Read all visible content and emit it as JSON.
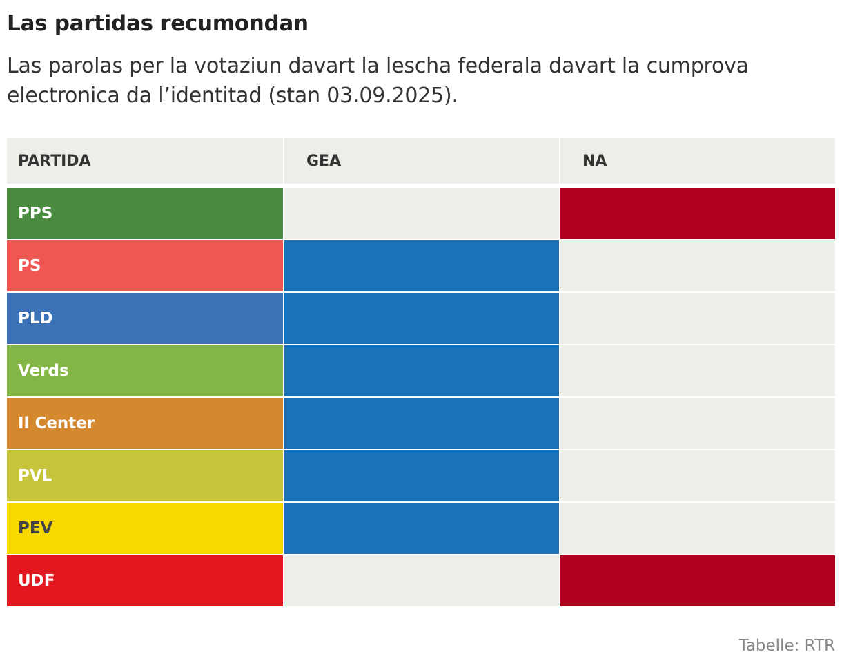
{
  "title": "Las partidas recumondan",
  "subtitle": "Las parolas per la votaziun davart la lescha federala davart la cumprova electronica da l’identitad (stan 03.09.2025).",
  "source": "Tabelle: RTR",
  "colors": {
    "gea": "#1b72b8",
    "na": "#b0001e",
    "empty": "#eeeee9",
    "header_bg": "#eeeee9"
  },
  "chart_data": {
    "type": "table",
    "title": "Las partidas recumondan",
    "columns": [
      "PARTIDA",
      "GEA",
      "NA"
    ],
    "rows": [
      {
        "party": "PPS",
        "color": "#4a8b3f",
        "text_color": "#ffffff",
        "recommendation": "NA"
      },
      {
        "party": "PS",
        "color": "#f05752",
        "text_color": "#ffffff",
        "recommendation": "GEA"
      },
      {
        "party": "PLD",
        "color": "#3b72b6",
        "text_color": "#ffffff",
        "recommendation": "GEA"
      },
      {
        "party": "Verds",
        "color": "#84b645",
        "text_color": "#ffffff",
        "recommendation": "GEA"
      },
      {
        "party": "Il Center",
        "color": "#d6882e",
        "text_color": "#ffffff",
        "recommendation": "GEA"
      },
      {
        "party": "PVL",
        "color": "#c6c43c",
        "text_color": "#ffffff",
        "recommendation": "GEA"
      },
      {
        "party": "PEV",
        "color": "#f7d900",
        "text_color": "#444444",
        "recommendation": "GEA"
      },
      {
        "party": "UDF",
        "color": "#e21720",
        "text_color": "#ffffff",
        "recommendation": "NA"
      }
    ]
  }
}
